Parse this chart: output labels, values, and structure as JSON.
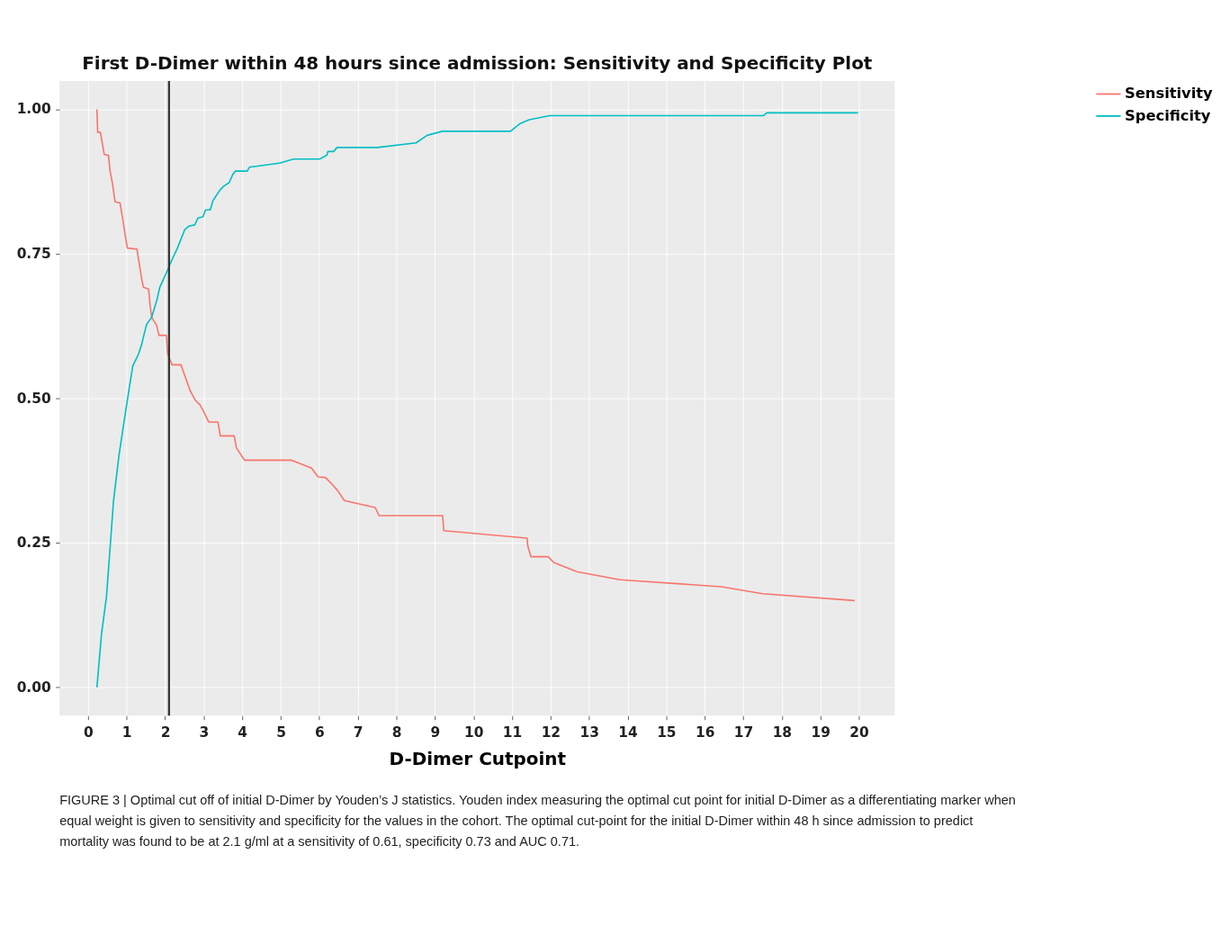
{
  "chart_data": {
    "type": "line",
    "title": "First D-Dimer within 48 hours since admission: Sensitivity and Specificity Plot",
    "xlabel": "D-Dimer Cutpoint",
    "xlim": [
      -0.74,
      20.93
    ],
    "xticks": [
      0,
      1,
      2,
      3,
      4,
      5,
      6,
      7,
      8,
      9,
      10,
      11,
      12,
      13,
      14,
      15,
      16,
      17,
      18,
      19,
      20
    ],
    "ylim": [
      -0.049,
      1.049
    ],
    "yticks": [
      {
        "value": 0,
        "label": "0.00"
      },
      {
        "value": 0.25,
        "label": "0.25"
      },
      {
        "value": 0.5,
        "label": "0.50"
      },
      {
        "value": 0.75,
        "label": "0.75"
      },
      {
        "value": 1,
        "label": "1.00"
      }
    ],
    "grid": true,
    "legend": "right",
    "line_style": "solid",
    "marker": "none",
    "ref_lines": [
      {
        "axis": "x",
        "value": 2.1,
        "color": "#333333"
      }
    ],
    "series": [
      {
        "name": "Sensitivity",
        "color": "#f8766d",
        "x": [
          0.23,
          0.25,
          0.32,
          0.38,
          0.42,
          0.53,
          0.57,
          0.63,
          0.7,
          0.83,
          0.89,
          0.95,
          1.02,
          1.27,
          1.31,
          1.4,
          1.44,
          1.57,
          1.61,
          1.65,
          1.78,
          1.84,
          2.03,
          2.07,
          2.18,
          2.41,
          2.5,
          2.65,
          2.79,
          2.9,
          3.0,
          3.13,
          3.37,
          3.43,
          3.79,
          3.85,
          4.06,
          5.27,
          5.8,
          5.97,
          6.16,
          6.35,
          6.48,
          6.65,
          7.45,
          7.55,
          9.2,
          9.23,
          11.39,
          11.41,
          11.49,
          11.94,
          12.08,
          12.68,
          13.8,
          16.44,
          17.5,
          19.89
        ],
        "values": [
          1.0,
          0.96,
          0.96,
          0.937,
          0.922,
          0.92,
          0.894,
          0.873,
          0.84,
          0.838,
          0.814,
          0.788,
          0.76,
          0.758,
          0.74,
          0.703,
          0.692,
          0.689,
          0.661,
          0.64,
          0.626,
          0.609,
          0.609,
          0.576,
          0.558,
          0.558,
          0.541,
          0.513,
          0.496,
          0.489,
          0.477,
          0.459,
          0.459,
          0.435,
          0.435,
          0.414,
          0.393,
          0.393,
          0.379,
          0.364,
          0.363,
          0.35,
          0.34,
          0.323,
          0.311,
          0.297,
          0.297,
          0.271,
          0.258,
          0.244,
          0.226,
          0.226,
          0.216,
          0.2,
          0.186,
          0.174,
          0.162,
          0.15
        ]
      },
      {
        "name": "Specificity",
        "color": "#00bfc4",
        "x": [
          0.23,
          0.35,
          0.48,
          0.66,
          0.8,
          0.93,
          1.06,
          1.16,
          1.3,
          1.39,
          1.44,
          1.52,
          1.65,
          1.79,
          1.86,
          2.03,
          2.2,
          2.32,
          2.51,
          2.62,
          2.77,
          2.85,
          2.98,
          3.05,
          3.17,
          3.24,
          3.42,
          3.52,
          3.66,
          3.76,
          3.82,
          4.13,
          4.19,
          4.97,
          5.33,
          6.01,
          6.2,
          6.22,
          6.37,
          6.46,
          7.51,
          8.51,
          8.8,
          9.19,
          10.96,
          11.2,
          11.45,
          11.98,
          17.52,
          17.61,
          19.98
        ],
        "values": [
          0.0,
          0.093,
          0.158,
          0.322,
          0.4,
          0.458,
          0.514,
          0.556,
          0.575,
          0.593,
          0.607,
          0.628,
          0.64,
          0.671,
          0.692,
          0.717,
          0.743,
          0.76,
          0.792,
          0.798,
          0.8,
          0.812,
          0.814,
          0.826,
          0.826,
          0.842,
          0.86,
          0.867,
          0.873,
          0.888,
          0.893,
          0.893,
          0.9,
          0.907,
          0.914,
          0.914,
          0.921,
          0.927,
          0.927,
          0.934,
          0.934,
          0.942,
          0.955,
          0.962,
          0.962,
          0.975,
          0.982,
          0.989,
          0.989,
          0.994,
          0.994
        ]
      }
    ],
    "annotations": [
      "FIGURE 3 | Optimal cut off of initial D-Dimer by Youden’s J statistics. Youden index measuring the optimal cut point for initial D-Dimer as a differentiating marker when equal weight is given to sensitivity and specificity for the values in the cohort. The optimal cut-point for the initial D-Dimer within 48 h since admission to predict mortality was found to be at 2.1 g/ml at a sensitivity of 0.61, specificity 0.73 and AUC 0.71."
    ]
  }
}
